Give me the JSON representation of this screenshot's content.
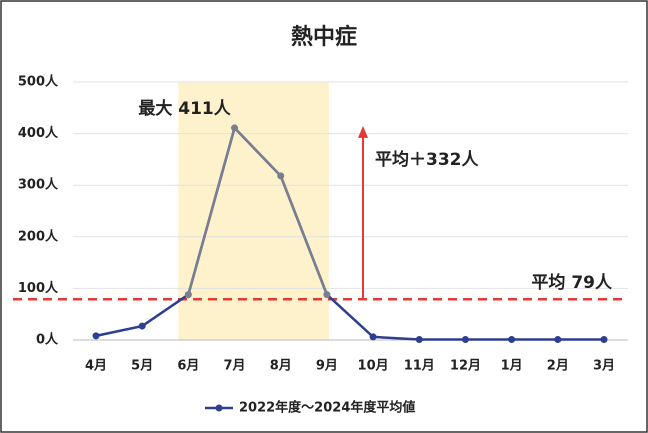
{
  "chart_data": {
    "type": "line",
    "title": "熱中症",
    "categories": [
      "4月",
      "5月",
      "6月",
      "7月",
      "8月",
      "9月",
      "10月",
      "11月",
      "12月",
      "1月",
      "2月",
      "3月"
    ],
    "series": [
      {
        "name": "2022年度～2024年度平均値",
        "color": "#2e3f8f",
        "values": [
          8,
          27,
          88,
          411,
          318,
          88,
          6,
          1,
          1,
          1,
          1,
          1
        ]
      }
    ],
    "ylim": [
      0,
      500
    ],
    "yticks": [
      {
        "value": 0,
        "label": "0人"
      },
      {
        "value": 100,
        "label": "100人"
      },
      {
        "value": 200,
        "label": "200人"
      },
      {
        "value": 300,
        "label": "300人"
      },
      {
        "value": 400,
        "label": "400人"
      },
      {
        "value": 500,
        "label": "500人"
      }
    ],
    "grid": true,
    "legend": "bottom",
    "highlight": {
      "from": 2,
      "to": 5,
      "color": "#fdf2cc",
      "line_color": "#7a7f8f"
    },
    "reference_line": {
      "value": 79,
      "label": "平均 79人",
      "color": "#e53935"
    },
    "annotations": {
      "max": "最大 411人",
      "increase": "平均＋332人"
    }
  }
}
